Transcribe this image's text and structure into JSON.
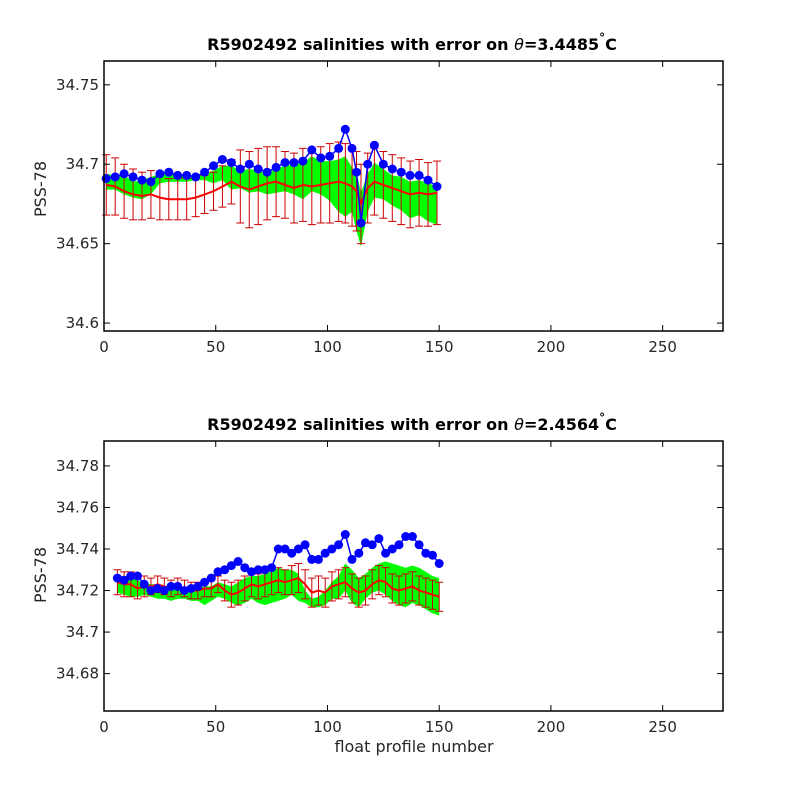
{
  "colors": {
    "obs": "#0000ff",
    "mapped": "#ff0000",
    "error_bar": "#cc0000",
    "envelope": "#00ff00",
    "axes": "#000000"
  },
  "chart_data": [
    {
      "type": "line",
      "title_prefix": "R5902492 salinities with error on ",
      "title_theta": "θ",
      "title_value": "=3.4485",
      "title_deg": "°",
      "title_unit": "C",
      "xlabel": "",
      "ylabel": "PSS-78",
      "xlim": [
        0,
        277
      ],
      "ylim": [
        34.595,
        34.765
      ],
      "xticks": [
        0,
        50,
        100,
        150,
        200,
        250
      ],
      "yticks": [
        34.6,
        34.65,
        34.7,
        34.75
      ],
      "ytick_labels": [
        "34.6",
        "34.65",
        "34.7",
        "34.75"
      ],
      "grid": false,
      "x": [
        1,
        5,
        9,
        13,
        17,
        21,
        25,
        29,
        33,
        37,
        41,
        45,
        49,
        53,
        57,
        61,
        65,
        69,
        73,
        77,
        81,
        85,
        89,
        93,
        97,
        101,
        105,
        108,
        111,
        113,
        115,
        118,
        121,
        125,
        129,
        133,
        137,
        141,
        145,
        149
      ],
      "series": [
        {
          "role": "observed",
          "values": [
            34.691,
            34.692,
            34.694,
            34.692,
            34.69,
            34.689,
            34.694,
            34.695,
            34.693,
            34.693,
            34.692,
            34.695,
            34.699,
            34.703,
            34.701,
            34.697,
            34.7,
            34.697,
            34.695,
            34.698,
            34.701,
            34.701,
            34.702,
            34.709,
            34.704,
            34.705,
            34.71,
            34.722,
            34.71,
            34.695,
            34.663,
            34.7,
            34.712,
            34.7,
            34.697,
            34.695,
            34.693,
            34.693,
            34.69,
            34.686
          ]
        },
        {
          "role": "mapped",
          "values": [
            34.687,
            34.686,
            34.683,
            34.681,
            34.68,
            34.681,
            34.679,
            34.678,
            34.678,
            34.678,
            34.679,
            34.681,
            34.683,
            34.686,
            34.689,
            34.686,
            34.684,
            34.686,
            34.688,
            34.689,
            34.687,
            34.685,
            34.687,
            34.686,
            34.687,
            34.688,
            34.689,
            34.688,
            34.686,
            34.683,
            34.675,
            34.685,
            34.689,
            34.687,
            34.685,
            34.683,
            34.681,
            34.682,
            34.681,
            34.682
          ]
        },
        {
          "role": "mapped_error",
          "values": [
            0.019,
            0.018,
            0.017,
            0.016,
            0.015,
            0.015,
            0.014,
            0.013,
            0.013,
            0.013,
            0.012,
            0.012,
            0.012,
            0.013,
            0.014,
            0.023,
            0.024,
            0.024,
            0.023,
            0.022,
            0.021,
            0.022,
            0.023,
            0.024,
            0.024,
            0.025,
            0.025,
            0.025,
            0.025,
            0.025,
            0.025,
            0.022,
            0.021,
            0.021,
            0.021,
            0.021,
            0.021,
            0.021,
            0.02,
            0.02
          ]
        },
        {
          "role": "envelope_low",
          "values": [
            34.684,
            34.684,
            34.681,
            34.679,
            34.678,
            34.681,
            34.688,
            34.689,
            34.689,
            34.689,
            34.69,
            34.69,
            34.688,
            34.69,
            34.684,
            34.685,
            34.682,
            34.683,
            34.681,
            34.682,
            34.683,
            34.681,
            34.678,
            34.683,
            34.681,
            34.677,
            34.67,
            34.667,
            34.67,
            34.658,
            34.648,
            34.67,
            34.679,
            34.678,
            34.674,
            34.671,
            34.666,
            34.668,
            34.664,
            34.662
          ]
        },
        {
          "role": "envelope_high",
          "values": [
            34.694,
            34.693,
            34.693,
            34.689,
            34.69,
            34.692,
            34.694,
            34.695,
            34.694,
            34.693,
            34.693,
            34.694,
            34.696,
            34.699,
            34.699,
            34.696,
            34.697,
            34.696,
            34.694,
            34.697,
            34.699,
            34.7,
            34.701,
            34.705,
            34.702,
            34.702,
            34.703,
            34.705,
            34.698,
            34.695,
            34.682,
            34.694,
            34.701,
            34.697,
            34.693,
            34.692,
            34.689,
            34.69,
            34.688,
            34.686
          ]
        }
      ]
    },
    {
      "type": "line",
      "title_prefix": "R5902492 salinities with error on ",
      "title_theta": "θ",
      "title_value": "=2.4564",
      "title_deg": "°",
      "title_unit": "C",
      "xlabel": "float profile number",
      "ylabel": "PSS-78",
      "xlim": [
        0,
        277
      ],
      "ylim": [
        34.662,
        34.792
      ],
      "xticks": [
        0,
        50,
        100,
        150,
        200,
        250
      ],
      "yticks": [
        34.68,
        34.7,
        34.72,
        34.74,
        34.76,
        34.78
      ],
      "ytick_labels": [
        "34.68",
        "34.7",
        "34.72",
        "34.74",
        "34.76",
        "34.78"
      ],
      "grid": false,
      "x": [
        6,
        9,
        12,
        15,
        18,
        21,
        24,
        27,
        30,
        33,
        36,
        39,
        42,
        45,
        48,
        51,
        54,
        57,
        60,
        63,
        66,
        69,
        72,
        75,
        78,
        81,
        84,
        87,
        90,
        93,
        96,
        99,
        102,
        105,
        108,
        111,
        114,
        117,
        120,
        123,
        126,
        129,
        132,
        135,
        138,
        141,
        144,
        147,
        150
      ],
      "series": [
        {
          "role": "observed",
          "values": [
            34.726,
            34.725,
            34.727,
            34.727,
            34.723,
            34.72,
            34.721,
            34.72,
            34.722,
            34.722,
            34.72,
            34.721,
            34.722,
            34.724,
            34.726,
            34.729,
            34.73,
            34.732,
            34.734,
            34.731,
            34.729,
            34.73,
            34.73,
            34.731,
            34.74,
            34.74,
            34.738,
            34.74,
            34.742,
            34.735,
            34.735,
            34.738,
            34.74,
            34.742,
            34.747,
            34.735,
            34.738,
            34.743,
            34.742,
            34.745,
            34.738,
            34.74,
            34.742,
            34.746,
            34.746,
            34.742,
            34.738,
            34.737,
            34.733
          ]
        },
        {
          "role": "mapped",
          "values": [
            34.724,
            34.723,
            34.723,
            34.721,
            34.722,
            34.722,
            34.723,
            34.722,
            34.721,
            34.722,
            34.721,
            34.72,
            34.72,
            34.721,
            34.721,
            34.723,
            34.72,
            34.718,
            34.719,
            34.721,
            34.723,
            34.722,
            34.723,
            34.724,
            34.725,
            34.724,
            34.725,
            34.726,
            34.723,
            34.719,
            34.72,
            34.719,
            34.722,
            34.723,
            34.724,
            34.721,
            34.719,
            34.72,
            34.723,
            34.725,
            34.724,
            34.721,
            34.72,
            34.721,
            34.722,
            34.72,
            34.719,
            34.718,
            34.717
          ]
        },
        {
          "role": "mapped_error",
          "values": [
            0.006,
            0.006,
            0.006,
            0.005,
            0.005,
            0.004,
            0.004,
            0.004,
            0.004,
            0.004,
            0.004,
            0.004,
            0.004,
            0.004,
            0.004,
            0.004,
            0.005,
            0.006,
            0.006,
            0.006,
            0.006,
            0.006,
            0.006,
            0.006,
            0.006,
            0.006,
            0.007,
            0.007,
            0.007,
            0.007,
            0.007,
            0.007,
            0.007,
            0.007,
            0.007,
            0.007,
            0.007,
            0.007,
            0.007,
            0.007,
            0.007,
            0.007,
            0.007,
            0.007,
            0.007,
            0.007,
            0.007,
            0.007,
            0.007
          ]
        },
        {
          "role": "envelope_low",
          "values": [
            34.719,
            34.718,
            34.717,
            34.717,
            34.718,
            34.717,
            34.716,
            34.716,
            34.715,
            34.716,
            34.716,
            34.715,
            34.715,
            34.713,
            34.715,
            34.717,
            34.716,
            34.714,
            34.713,
            34.714,
            34.716,
            34.714,
            34.713,
            34.714,
            34.715,
            34.716,
            34.718,
            34.715,
            34.714,
            34.712,
            34.712,
            34.713,
            34.716,
            34.716,
            34.72,
            34.714,
            34.712,
            34.716,
            34.719,
            34.72,
            34.718,
            34.715,
            34.713,
            34.712,
            34.714,
            34.713,
            34.711,
            34.709,
            34.708
          ]
        },
        {
          "role": "envelope_high",
          "values": [
            34.726,
            34.727,
            34.727,
            34.725,
            34.724,
            34.723,
            34.723,
            34.722,
            34.721,
            34.72,
            34.72,
            34.72,
            34.721,
            34.722,
            34.722,
            34.724,
            34.723,
            34.722,
            34.724,
            34.726,
            34.727,
            34.727,
            34.728,
            34.729,
            34.731,
            34.73,
            34.73,
            34.728,
            34.72,
            34.716,
            34.717,
            34.72,
            34.724,
            34.727,
            34.733,
            34.73,
            34.726,
            34.728,
            34.731,
            34.733,
            34.734,
            34.733,
            34.732,
            34.731,
            34.732,
            34.731,
            34.729,
            34.727,
            34.726
          ]
        }
      ]
    }
  ]
}
